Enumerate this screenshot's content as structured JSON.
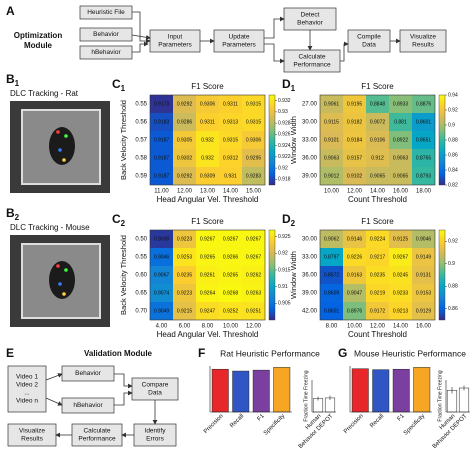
{
  "panel_a": {
    "label": "A",
    "module": [
      "Optimization",
      "Module"
    ],
    "nodes": [
      {
        "lines": [
          "Heuristic File"
        ]
      },
      {
        "lines": [
          "Behavior"
        ]
      },
      {
        "lines": [
          "hBehavior"
        ]
      },
      {
        "lines": [
          "Input",
          "Parameters"
        ]
      },
      {
        "lines": [
          "Update",
          "Parameters"
        ]
      },
      {
        "lines": [
          "Detect",
          "Behavior"
        ]
      },
      {
        "lines": [
          "Calculate",
          "Performance"
        ]
      },
      {
        "lines": [
          "Compile",
          "Data"
        ]
      },
      {
        "lines": [
          "Visualize",
          "Results"
        ]
      }
    ]
  },
  "panel_b1": {
    "label": "B",
    "sub": "1",
    "caption": "DLC Tracking - Rat"
  },
  "panel_b2": {
    "label": "B",
    "sub": "2",
    "caption": "DLC Tracking - Mouse"
  },
  "panel_e": {
    "label": "E",
    "module": "Validation Module",
    "nodes": [
      {
        "lines": [
          "Video 1",
          "Video 2",
          "...",
          "Video n"
        ]
      },
      {
        "lines": [
          "Behavior"
        ]
      },
      {
        "lines": [
          "hBehavior"
        ]
      },
      {
        "lines": [
          "Compare",
          "Data"
        ]
      },
      {
        "lines": [
          "Identify",
          "Errors"
        ]
      },
      {
        "lines": [
          "Calculate",
          "Performance"
        ]
      },
      {
        "lines": [
          "Visualize",
          "Results"
        ]
      }
    ]
  },
  "chart_data": [
    {
      "type": "heatmap",
      "label": "C",
      "sub": "1",
      "title": "F1 Score",
      "colormap": "parula",
      "x_label": "Head Angular Vel. Threshold",
      "y_label": "Back Velocity Threshold",
      "x_categories": [
        "11.00",
        "12.00",
        "13.00",
        "14.00",
        "15.00"
      ],
      "y_categories": [
        "0.55",
        "0.56",
        "0.57",
        "0.58",
        "0.59"
      ],
      "values": [
        [
          0.9173,
          0.9292,
          0.9306,
          0.9311,
          0.9315
        ],
        [
          0.9183,
          0.9286,
          0.9311,
          0.9313,
          0.9315
        ],
        [
          0.9187,
          0.9305,
          0.932,
          0.9315,
          0.9306
        ],
        [
          0.9187,
          0.9302,
          0.932,
          0.9312,
          0.9295
        ],
        [
          0.9187,
          0.9292,
          0.9309,
          0.931,
          0.9283
        ]
      ],
      "clim": [
        0.917,
        0.933
      ],
      "cticks": [
        0.918,
        0.92,
        0.922,
        0.924,
        0.926,
        0.928,
        0.93,
        0.932
      ]
    },
    {
      "type": "heatmap",
      "label": "D",
      "sub": "1",
      "title": "F1 Score",
      "colormap": "parula",
      "x_label": "Count Threshold",
      "y_label": "Window Width",
      "x_categories": [
        "10.00",
        "12.00",
        "14.00",
        "16.00",
        "18.00"
      ],
      "y_categories": [
        "27.00",
        "30.00",
        "33.00",
        "36.00",
        "39.00"
      ],
      "values": [
        [
          0.9061,
          0.9195,
          0.8848,
          0.8933,
          0.8876
        ],
        [
          0.9115,
          0.9182,
          0.9072,
          0.881,
          0.8601
        ],
        [
          0.9101,
          0.9184,
          0.9106,
          0.8922,
          0.8651
        ],
        [
          0.9063,
          0.9157,
          0.912,
          0.9063,
          0.8765
        ],
        [
          0.9012,
          0.9102,
          0.9065,
          0.9065,
          0.8793
        ]
      ],
      "clim": [
        0.82,
        0.94
      ],
      "cticks": [
        0.82,
        0.84,
        0.86,
        0.88,
        0.9,
        0.92,
        0.94
      ]
    },
    {
      "type": "heatmap",
      "label": "C",
      "sub": "2",
      "title": "F1 Score",
      "colormap": "parula",
      "x_label": "Head Angular Vel. Threshold",
      "y_label": "Back Velocity Threshold",
      "x_categories": [
        "4.00",
        "6.00",
        "8.00",
        "10.00",
        "12.00"
      ],
      "y_categories": [
        "0.50",
        "0.55",
        "0.60",
        "0.65",
        "0.70"
      ],
      "values": [
        [
          0.9008,
          0.9223,
          0.9267,
          0.9267,
          0.9267
        ],
        [
          0.9046,
          0.9253,
          0.9265,
          0.9266,
          0.9267
        ],
        [
          0.9067,
          0.9235,
          0.9261,
          0.9265,
          0.9262
        ],
        [
          0.9074,
          0.9223,
          0.9264,
          0.9268,
          0.9263
        ],
        [
          0.9049,
          0.9215,
          0.9247,
          0.9252,
          0.9251
        ]
      ],
      "clim": [
        0.9,
        0.927
      ],
      "cticks": [
        0.905,
        0.91,
        0.915,
        0.92,
        0.925
      ]
    },
    {
      "type": "heatmap",
      "label": "D",
      "sub": "2",
      "title": "F1 Score",
      "colormap": "parula",
      "x_label": "Count Threshold",
      "y_label": "Window Width",
      "x_categories": [
        "8.00",
        "10.00",
        "12.00",
        "14.00",
        "16.00"
      ],
      "y_categories": [
        "30.00",
        "33.00",
        "36.00",
        "39.00",
        "42.00"
      ],
      "values": [
        [
          0.9062,
          0.9146,
          0.9224,
          0.9125,
          0.9046
        ],
        [
          0.8797,
          0.9226,
          0.9217,
          0.9267,
          0.9149
        ],
        [
          0.8572,
          0.9163,
          0.9235,
          0.9245,
          0.9131
        ],
        [
          0.8609,
          0.9047,
          0.9219,
          0.9233,
          0.9153
        ],
        [
          0.8601,
          0.8976,
          0.9172,
          0.9213,
          0.9129
        ]
      ],
      "clim": [
        0.85,
        0.93
      ],
      "cticks": [
        0.86,
        0.88,
        0.9,
        0.92
      ]
    },
    {
      "type": "bar",
      "label": "F",
      "title": "Rat Heuristic Performance",
      "categories": [
        "Precision",
        "Recall",
        "F1",
        "Specificity"
      ],
      "values": [
        0.93,
        0.89,
        0.91,
        0.97
      ],
      "colors": [
        "#e8272a",
        "#2f56c4",
        "#7b3fa0",
        "#f6a623"
      ],
      "ylim": [
        0,
        1
      ]
    },
    {
      "type": "bar",
      "y_label": "Fraction Time Freezing",
      "categories": [
        "Human",
        "Behavior DEPOT"
      ],
      "values": [
        0.42,
        0.44
      ],
      "errors": [
        0.06,
        0.07
      ],
      "color": "#ffffff",
      "ylim": [
        0,
        1
      ]
    },
    {
      "type": "bar",
      "label": "G",
      "title": "Mouse Heuristic Performance",
      "categories": [
        "Precision",
        "Recall",
        "F1",
        "Specificity"
      ],
      "values": [
        0.94,
        0.92,
        0.93,
        0.97
      ],
      "colors": [
        "#e8272a",
        "#2f56c4",
        "#7b3fa0",
        "#f6a623"
      ],
      "ylim": [
        0,
        1
      ]
    },
    {
      "type": "bar",
      "y_label": "Fraction Time Freezing",
      "categories": [
        "Human",
        "Behavior DEPOT"
      ],
      "values": [
        0.68,
        0.75
      ],
      "errors": [
        0.1,
        0.08
      ],
      "color": "#ffffff",
      "ylim": [
        0,
        1
      ]
    }
  ]
}
